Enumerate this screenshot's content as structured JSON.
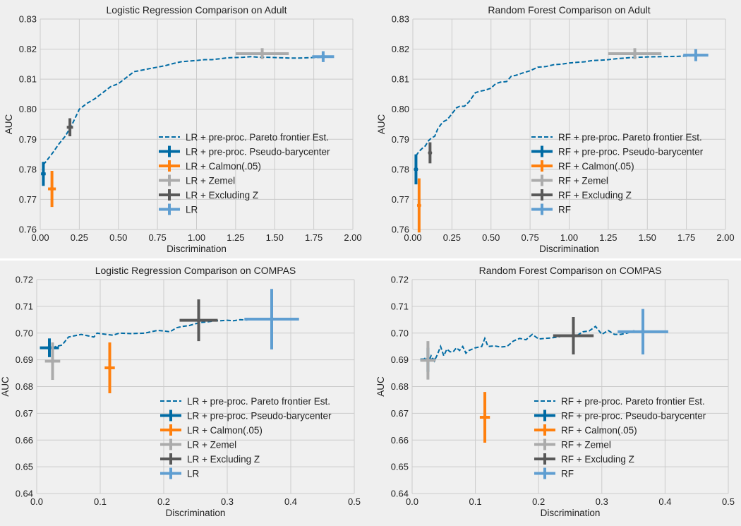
{
  "chart_data": [
    {
      "type": "line",
      "title": "Logistic Regression Comparison on Adult",
      "xlabel": "Discrimination",
      "ylabel": "AUC",
      "xlim": [
        0,
        2.0
      ],
      "ylim": [
        0.76,
        0.83
      ],
      "xticks": [
        "0.00",
        "0.25",
        "0.50",
        "0.75",
        "1.00",
        "1.25",
        "1.50",
        "1.75",
        "2.00"
      ],
      "yticks": [
        "0.76",
        "0.77",
        "0.78",
        "0.79",
        "0.80",
        "0.81",
        "0.82",
        "0.83"
      ],
      "xtick_values": [
        0,
        0.25,
        0.5,
        0.75,
        1.0,
        1.25,
        1.5,
        1.75,
        2.0
      ],
      "ytick_values": [
        0.76,
        0.77,
        0.78,
        0.79,
        0.8,
        0.81,
        0.82,
        0.83
      ],
      "grid": true,
      "legend": "bottom-right",
      "frontier": {
        "name": "LR + pre-proc. Pareto frontier Est.",
        "x": [
          0.02,
          0.05,
          0.08,
          0.12,
          0.16,
          0.2,
          0.25,
          0.3,
          0.35,
          0.4,
          0.45,
          0.5,
          0.55,
          0.6,
          0.65,
          0.7,
          0.75,
          0.8,
          0.85,
          0.9,
          0.95,
          1.0,
          1.05,
          1.1,
          1.15,
          1.2,
          1.25,
          1.3,
          1.35,
          1.4,
          1.45,
          1.5,
          1.55,
          1.6,
          1.65,
          1.7,
          1.75,
          1.8
        ],
        "y": [
          0.7815,
          0.7835,
          0.7855,
          0.7885,
          0.791,
          0.7945,
          0.8,
          0.802,
          0.8035,
          0.8055,
          0.8075,
          0.8085,
          0.8105,
          0.8125,
          0.813,
          0.8135,
          0.814,
          0.8145,
          0.8152,
          0.8158,
          0.816,
          0.8162,
          0.8165,
          0.8165,
          0.8168,
          0.8171,
          0.8172,
          0.8173,
          0.8175,
          0.8173,
          0.8173,
          0.8172,
          0.8171,
          0.817,
          0.817,
          0.8171,
          0.8172,
          0.8173
        ]
      },
      "points": [
        {
          "name": "LR + pre-proc. Pseudo-barycenter",
          "color": "#006ba4",
          "x": 0.02,
          "y": 0.7785,
          "xerr": 0.015,
          "yerr": 0.004
        },
        {
          "name": "LR + Calmon(.05)",
          "color": "#ff800e",
          "x": 0.075,
          "y": 0.7735,
          "xerr": 0.025,
          "yerr": 0.006
        },
        {
          "name": "LR + Zemel",
          "color": "#ababab",
          "x": 1.42,
          "y": 0.8185,
          "xerr": 0.17,
          "yerr": 0.0018
        },
        {
          "name": "LR + Excluding Z",
          "color": "#595959",
          "x": 0.19,
          "y": 0.794,
          "xerr": 0.02,
          "yerr": 0.003
        },
        {
          "name": "LR",
          "color": "#5f9ed1",
          "x": 1.81,
          "y": 0.8175,
          "xerr": 0.07,
          "yerr": 0.0018
        }
      ]
    },
    {
      "type": "line",
      "title": "Random Forest Comparison on Adult",
      "xlabel": "Discrimination",
      "ylabel": "AUC",
      "xlim": [
        0,
        2.0
      ],
      "ylim": [
        0.76,
        0.83
      ],
      "xticks": [
        "0.00",
        "0.25",
        "0.50",
        "0.75",
        "1.00",
        "1.25",
        "1.50",
        "1.75",
        "2.00"
      ],
      "yticks": [
        "0.76",
        "0.77",
        "0.78",
        "0.79",
        "0.80",
        "0.81",
        "0.82",
        "0.83"
      ],
      "xtick_values": [
        0,
        0.25,
        0.5,
        0.75,
        1.0,
        1.25,
        1.5,
        1.75,
        2.0
      ],
      "ytick_values": [
        0.76,
        0.77,
        0.78,
        0.79,
        0.8,
        0.81,
        0.82,
        0.83
      ],
      "grid": true,
      "legend": "bottom-right",
      "frontier": {
        "name": "RF + pre-proc. Pareto frontier Est.",
        "x": [
          0.02,
          0.04,
          0.06,
          0.08,
          0.1,
          0.12,
          0.14,
          0.16,
          0.18,
          0.2,
          0.22,
          0.25,
          0.28,
          0.3,
          0.33,
          0.36,
          0.4,
          0.43,
          0.46,
          0.5,
          0.53,
          0.56,
          0.6,
          0.63,
          0.66,
          0.7,
          0.75,
          0.8,
          0.85,
          0.9,
          0.95,
          1.0,
          1.05,
          1.1,
          1.15,
          1.2,
          1.25,
          1.3,
          1.35,
          1.4,
          1.5,
          1.6,
          1.7,
          1.8
        ],
        "y": [
          0.7845,
          0.786,
          0.787,
          0.7878,
          0.7895,
          0.7905,
          0.791,
          0.7935,
          0.795,
          0.796,
          0.7965,
          0.7985,
          0.8005,
          0.801,
          0.801,
          0.8025,
          0.8055,
          0.806,
          0.8063,
          0.807,
          0.8085,
          0.809,
          0.8092,
          0.811,
          0.8113,
          0.812,
          0.8128,
          0.814,
          0.8142,
          0.8148,
          0.815,
          0.8154,
          0.8156,
          0.8158,
          0.8162,
          0.8163,
          0.8165,
          0.8168,
          0.817,
          0.8172,
          0.8174,
          0.8175,
          0.8176,
          0.8178
        ]
      },
      "points": [
        {
          "name": "RF + pre-proc. Pseudo-barycenter",
          "color": "#006ba4",
          "x": 0.02,
          "y": 0.78,
          "xerr": 0.012,
          "yerr": 0.005
        },
        {
          "name": "RF + Calmon(.05)",
          "color": "#ff800e",
          "x": 0.04,
          "y": 0.768,
          "xerr": 0.012,
          "yerr": 0.009
        },
        {
          "name": "RF + Zemel",
          "color": "#ababab",
          "x": 1.42,
          "y": 0.8185,
          "xerr": 0.17,
          "yerr": 0.0018
        },
        {
          "name": "RF + Excluding Z",
          "color": "#595959",
          "x": 0.11,
          "y": 0.7855,
          "xerr": 0.01,
          "yerr": 0.0035
        },
        {
          "name": "RF",
          "color": "#5f9ed1",
          "x": 1.81,
          "y": 0.818,
          "xerr": 0.08,
          "yerr": 0.002
        }
      ]
    },
    {
      "type": "line",
      "title": "Logistic Regression Comparison on COMPAS",
      "xlabel": "Discrimination",
      "ylabel": "AUC",
      "xlim": [
        0,
        0.5
      ],
      "ylim": [
        0.64,
        0.72
      ],
      "xticks": [
        "0.0",
        "0.1",
        "0.2",
        "0.3",
        "0.4",
        "0.5"
      ],
      "yticks": [
        "0.64",
        "0.65",
        "0.66",
        "0.67",
        "0.68",
        "0.69",
        "0.70",
        "0.71",
        "0.72"
      ],
      "xtick_values": [
        0,
        0.1,
        0.2,
        0.3,
        0.4,
        0.5
      ],
      "ytick_values": [
        0.64,
        0.65,
        0.66,
        0.67,
        0.68,
        0.69,
        0.7,
        0.71,
        0.72
      ],
      "grid": true,
      "legend": "bottom-right",
      "frontier": {
        "name": "LR + pre-proc. Pareto frontier Est.",
        "x": [
          0.025,
          0.03,
          0.04,
          0.05,
          0.06,
          0.07,
          0.08,
          0.09,
          0.095,
          0.1,
          0.11,
          0.12,
          0.13,
          0.15,
          0.17,
          0.19,
          0.2,
          0.21,
          0.22,
          0.23,
          0.24,
          0.25,
          0.26,
          0.27,
          0.28,
          0.29,
          0.3,
          0.31,
          0.32,
          0.33,
          0.34,
          0.35,
          0.36,
          0.37
        ],
        "y": [
          0.694,
          0.695,
          0.6955,
          0.6985,
          0.699,
          0.6995,
          0.699,
          0.6985,
          0.7,
          0.6998,
          0.6995,
          0.6992,
          0.7,
          0.6998,
          0.7,
          0.701,
          0.7008,
          0.7005,
          0.702,
          0.7025,
          0.7028,
          0.7035,
          0.704,
          0.7042,
          0.7046,
          0.7046,
          0.7048,
          0.7046,
          0.705,
          0.7049,
          0.7051,
          0.7052,
          0.7052,
          0.7052
        ]
      },
      "points": [
        {
          "name": "LR + pre-proc. Pseudo-barycenter",
          "color": "#006ba4",
          "x": 0.02,
          "y": 0.6945,
          "xerr": 0.015,
          "yerr": 0.0035
        },
        {
          "name": "LR + Calmon(.05)",
          "color": "#ff800e",
          "x": 0.115,
          "y": 0.687,
          "xerr": 0.008,
          "yerr": 0.0095
        },
        {
          "name": "LR + Zemel",
          "color": "#ababab",
          "x": 0.025,
          "y": 0.6895,
          "xerr": 0.012,
          "yerr": 0.007
        },
        {
          "name": "LR + Excluding Z",
          "color": "#595959",
          "x": 0.255,
          "y": 0.7048,
          "xerr": 0.03,
          "yerr": 0.0078
        },
        {
          "name": "LR",
          "color": "#5f9ed1",
          "x": 0.37,
          "y": 0.7052,
          "xerr": 0.043,
          "yerr": 0.0113
        }
      ]
    },
    {
      "type": "line",
      "title": "Random Forest Comparison on COMPAS",
      "xlabel": "Discrimination",
      "ylabel": "AUC",
      "xlim": [
        0,
        0.5
      ],
      "ylim": [
        0.64,
        0.72
      ],
      "xticks": [
        "0.0",
        "0.1",
        "0.2",
        "0.3",
        "0.4",
        "0.5"
      ],
      "yticks": [
        "0.64",
        "0.65",
        "0.66",
        "0.67",
        "0.68",
        "0.69",
        "0.70",
        "0.71",
        "0.72"
      ],
      "xtick_values": [
        0,
        0.1,
        0.2,
        0.3,
        0.4,
        0.5
      ],
      "ytick_values": [
        0.64,
        0.65,
        0.66,
        0.67,
        0.68,
        0.69,
        0.7,
        0.71,
        0.72
      ],
      "grid": true,
      "legend": "bottom-right",
      "frontier": {
        "name": "RF + pre-proc. Pareto frontier Est.",
        "x": [
          0.015,
          0.02,
          0.025,
          0.03,
          0.035,
          0.04,
          0.045,
          0.05,
          0.055,
          0.06,
          0.065,
          0.07,
          0.075,
          0.08,
          0.085,
          0.09,
          0.095,
          0.1,
          0.11,
          0.115,
          0.12,
          0.13,
          0.14,
          0.15,
          0.16,
          0.17,
          0.18,
          0.19,
          0.2,
          0.21,
          0.22,
          0.23,
          0.24,
          0.25,
          0.26,
          0.27,
          0.28,
          0.29,
          0.3,
          0.31,
          0.32,
          0.33,
          0.34,
          0.35,
          0.36
        ],
        "y": [
          0.6895,
          0.6905,
          0.689,
          0.6915,
          0.6895,
          0.692,
          0.695,
          0.6915,
          0.694,
          0.693,
          0.693,
          0.6945,
          0.6935,
          0.695,
          0.6925,
          0.6935,
          0.694,
          0.6945,
          0.695,
          0.698,
          0.695,
          0.6952,
          0.6948,
          0.695,
          0.697,
          0.698,
          0.6975,
          0.6995,
          0.6978,
          0.698,
          0.6982,
          0.6985,
          0.699,
          0.6992,
          0.699,
          0.7005,
          0.7008,
          0.7025,
          0.6995,
          0.701,
          0.6995,
          0.6995,
          0.7,
          0.7008,
          0.7005
        ]
      },
      "points": [
        {
          "name": "RF + pre-proc. Pseudo-barycenter",
          "color": "#006ba4",
          "x": 0.025,
          "y": 0.69,
          "xerr": 0.012,
          "yerr": 0.0045
        },
        {
          "name": "RF + Calmon(.05)",
          "color": "#ff800e",
          "x": 0.115,
          "y": 0.6685,
          "xerr": 0.008,
          "yerr": 0.0095
        },
        {
          "name": "RF + Zemel",
          "color": "#ababab",
          "x": 0.025,
          "y": 0.6898,
          "xerr": 0.012,
          "yerr": 0.0072
        },
        {
          "name": "RF + Excluding Z",
          "color": "#595959",
          "x": 0.255,
          "y": 0.699,
          "xerr": 0.032,
          "yerr": 0.007
        },
        {
          "name": "RF",
          "color": "#5f9ed1",
          "x": 0.365,
          "y": 0.7005,
          "xerr": 0.04,
          "yerr": 0.0085
        }
      ]
    }
  ]
}
